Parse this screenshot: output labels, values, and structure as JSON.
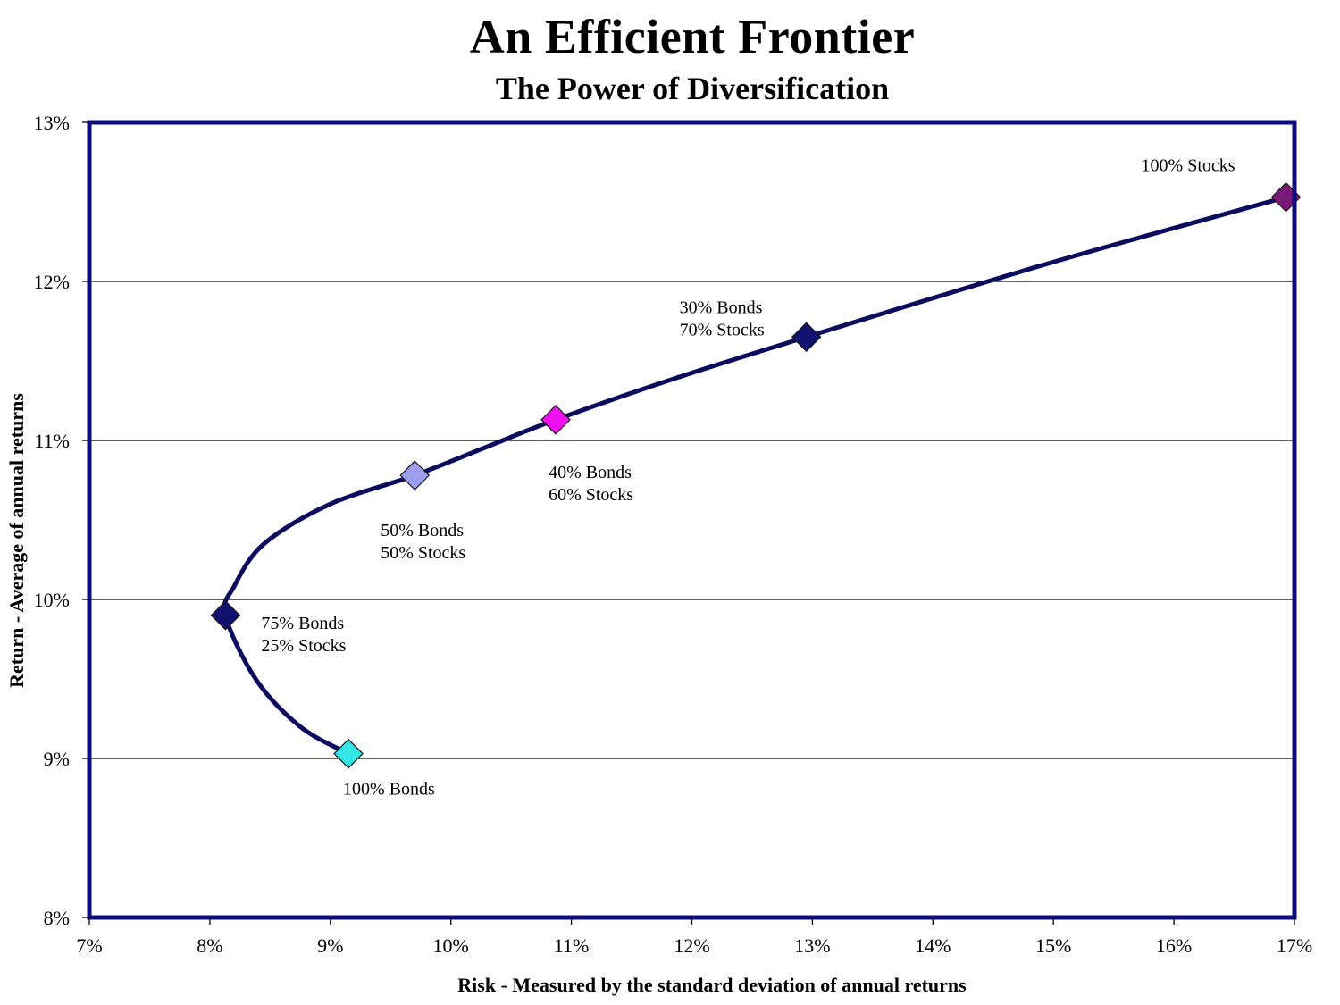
{
  "chart_data": {
    "type": "line",
    "title": "An Efficient Frontier",
    "subtitle": "The Power of Diversification",
    "xlabel": "Risk - Measured by the standard deviation of annual returns",
    "ylabel": "Return - Average of annual returns",
    "xlim": [
      7,
      17
    ],
    "ylim": [
      8,
      13
    ],
    "x_ticks": [
      "7%",
      "8%",
      "9%",
      "10%",
      "11%",
      "12%",
      "13%",
      "14%",
      "15%",
      "16%",
      "17%"
    ],
    "y_ticks": [
      "8%",
      "9%",
      "10%",
      "11%",
      "12%",
      "13%"
    ],
    "grid": "horizontal",
    "colors": {
      "frame": "#0c0c7a",
      "curve": "#0c0c5e",
      "grid": "#000000"
    },
    "points": [
      {
        "label_lines": [
          "100% Bonds"
        ],
        "x": 9.15,
        "y": 9.03,
        "color": "#33e5e5"
      },
      {
        "label_lines": [
          "75% Bonds",
          "25% Stocks"
        ],
        "x": 8.13,
        "y": 9.9,
        "color": "#111170"
      },
      {
        "label_lines": [
          "50% Bonds",
          "50% Stocks"
        ],
        "x": 9.7,
        "y": 10.78,
        "color": "#9e9ef0"
      },
      {
        "label_lines": [
          "40% Bonds",
          "60% Stocks"
        ],
        "x": 10.87,
        "y": 11.13,
        "color": "#ee11ee"
      },
      {
        "label_lines": [
          "30% Bonds",
          "70% Stocks"
        ],
        "x": 12.95,
        "y": 11.65,
        "color": "#111170"
      },
      {
        "label_lines": [
          "100% Stocks"
        ],
        "x": 16.93,
        "y": 12.53,
        "color": "#7a1a78"
      }
    ],
    "curve": [
      [
        9.15,
        9.03
      ],
      [
        8.75,
        9.2
      ],
      [
        8.38,
        9.5
      ],
      [
        8.13,
        9.9
      ],
      [
        8.2,
        10.08
      ],
      [
        8.45,
        10.35
      ],
      [
        9.0,
        10.6
      ],
      [
        9.7,
        10.78
      ],
      [
        10.3,
        10.96
      ],
      [
        10.87,
        11.13
      ],
      [
        11.9,
        11.4
      ],
      [
        12.95,
        11.65
      ],
      [
        14.9,
        12.1
      ],
      [
        16.93,
        12.53
      ]
    ]
  }
}
